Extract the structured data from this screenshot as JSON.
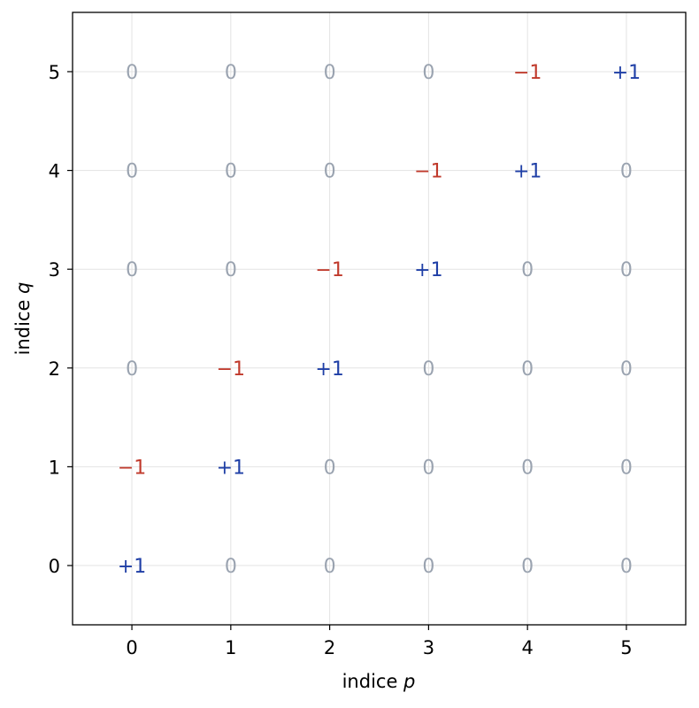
{
  "chart_data": {
    "type": "table",
    "title": "",
    "xlabel_prefix": "indice ",
    "xlabel_var": "p",
    "ylabel_prefix": "indice ",
    "ylabel_var": "q",
    "x_ticks": [
      "0",
      "1",
      "2",
      "3",
      "4",
      "5"
    ],
    "y_ticks": [
      "0",
      "1",
      "2",
      "3",
      "4",
      "5"
    ],
    "xlim": [
      -0.6,
      5.6
    ],
    "ylim": [
      -0.6,
      5.6
    ],
    "grid": true,
    "colors": {
      "positive": "#1f3fa6",
      "negative": "#c0392b",
      "zero": "#9aa3b0",
      "grid": "#e3e3e3"
    },
    "cells": [
      {
        "p": 0,
        "q": 0,
        "label": "+1",
        "kind": "positive"
      },
      {
        "p": 1,
        "q": 0,
        "label": "0",
        "kind": "zero"
      },
      {
        "p": 2,
        "q": 0,
        "label": "0",
        "kind": "zero"
      },
      {
        "p": 3,
        "q": 0,
        "label": "0",
        "kind": "zero"
      },
      {
        "p": 4,
        "q": 0,
        "label": "0",
        "kind": "zero"
      },
      {
        "p": 5,
        "q": 0,
        "label": "0",
        "kind": "zero"
      },
      {
        "p": 0,
        "q": 1,
        "label": "−1",
        "kind": "negative"
      },
      {
        "p": 1,
        "q": 1,
        "label": "+1",
        "kind": "positive"
      },
      {
        "p": 2,
        "q": 1,
        "label": "0",
        "kind": "zero"
      },
      {
        "p": 3,
        "q": 1,
        "label": "0",
        "kind": "zero"
      },
      {
        "p": 4,
        "q": 1,
        "label": "0",
        "kind": "zero"
      },
      {
        "p": 5,
        "q": 1,
        "label": "0",
        "kind": "zero"
      },
      {
        "p": 0,
        "q": 2,
        "label": "0",
        "kind": "zero"
      },
      {
        "p": 1,
        "q": 2,
        "label": "−1",
        "kind": "negative"
      },
      {
        "p": 2,
        "q": 2,
        "label": "+1",
        "kind": "positive"
      },
      {
        "p": 3,
        "q": 2,
        "label": "0",
        "kind": "zero"
      },
      {
        "p": 4,
        "q": 2,
        "label": "0",
        "kind": "zero"
      },
      {
        "p": 5,
        "q": 2,
        "label": "0",
        "kind": "zero"
      },
      {
        "p": 0,
        "q": 3,
        "label": "0",
        "kind": "zero"
      },
      {
        "p": 1,
        "q": 3,
        "label": "0",
        "kind": "zero"
      },
      {
        "p": 2,
        "q": 3,
        "label": "−1",
        "kind": "negative"
      },
      {
        "p": 3,
        "q": 3,
        "label": "+1",
        "kind": "positive"
      },
      {
        "p": 4,
        "q": 3,
        "label": "0",
        "kind": "zero"
      },
      {
        "p": 5,
        "q": 3,
        "label": "0",
        "kind": "zero"
      },
      {
        "p": 0,
        "q": 4,
        "label": "0",
        "kind": "zero"
      },
      {
        "p": 1,
        "q": 4,
        "label": "0",
        "kind": "zero"
      },
      {
        "p": 2,
        "q": 4,
        "label": "0",
        "kind": "zero"
      },
      {
        "p": 3,
        "q": 4,
        "label": "−1",
        "kind": "negative"
      },
      {
        "p": 4,
        "q": 4,
        "label": "+1",
        "kind": "positive"
      },
      {
        "p": 5,
        "q": 4,
        "label": "0",
        "kind": "zero"
      },
      {
        "p": 0,
        "q": 5,
        "label": "0",
        "kind": "zero"
      },
      {
        "p": 1,
        "q": 5,
        "label": "0",
        "kind": "zero"
      },
      {
        "p": 2,
        "q": 5,
        "label": "0",
        "kind": "zero"
      },
      {
        "p": 3,
        "q": 5,
        "label": "0",
        "kind": "zero"
      },
      {
        "p": 4,
        "q": 5,
        "label": "−1",
        "kind": "negative"
      },
      {
        "p": 5,
        "q": 5,
        "label": "+1",
        "kind": "positive"
      }
    ]
  }
}
